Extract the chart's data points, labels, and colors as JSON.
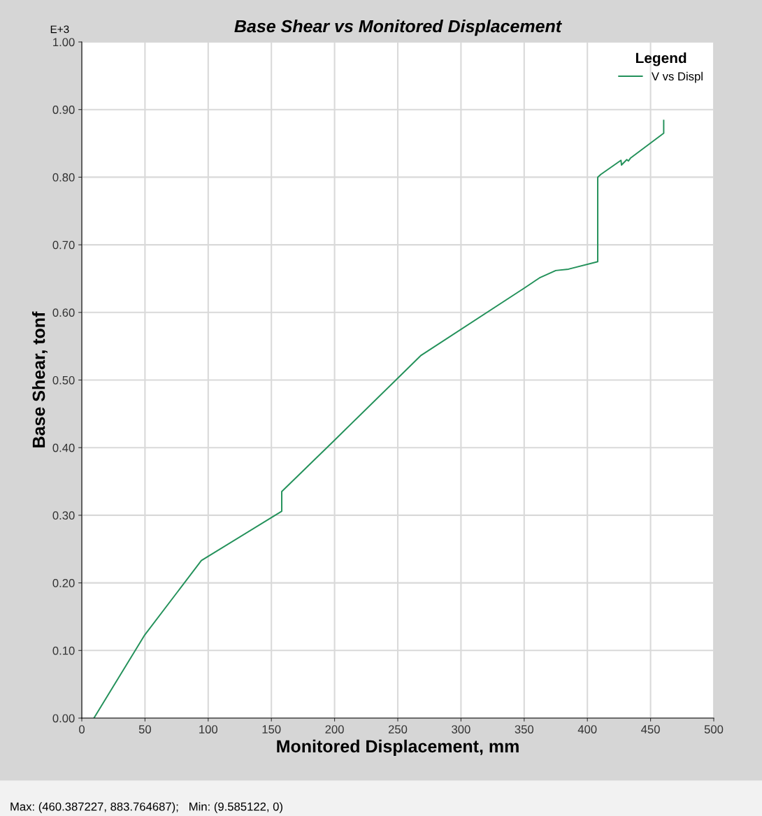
{
  "chart_data": {
    "type": "line",
    "title": "Base Shear vs Monitored Displacement",
    "xlabel": "Monitored Displacement, mm",
    "ylabel": "Base Shear, tonf",
    "legend_title": "Legend",
    "annotations": [
      "E+3",
      "Max: (460.387227, 883.764687);   Min: (9.585122, 0)"
    ],
    "series": [
      {
        "name": "V vs Displ",
        "color": "#23915a",
        "x": [
          9.6,
          49.8,
          94.6,
          158.2,
          158.2,
          200,
          268.1,
          350.1,
          362.1,
          375,
          385.1,
          408.2,
          408.2,
          410.6,
          426.6,
          427.0,
          431.2,
          432.5,
          434,
          460.4,
          460.4
        ],
        "values": [
          0,
          0.123,
          0.233,
          0.306,
          0.335,
          0.411,
          0.536,
          0.636,
          0.651,
          0.662,
          0.664,
          0.675,
          0.8,
          0.804,
          0.825,
          0.818,
          0.826,
          0.824,
          0.828,
          0.865,
          0.884
        ]
      }
    ],
    "xlim": [
      0,
      500
    ],
    "xticks": [
      0,
      50,
      100,
      150,
      200,
      250,
      300,
      350,
      400,
      450,
      500
    ],
    "ylim": [
      0,
      1
    ],
    "yticks": [
      {
        "value": 0,
        "label": "0.00"
      },
      {
        "value": 0.1,
        "label": "0.10"
      },
      {
        "value": 0.2,
        "label": "0.20"
      },
      {
        "value": 0.3,
        "label": "0.30"
      },
      {
        "value": 0.4,
        "label": "0.40"
      },
      {
        "value": 0.5,
        "label": "0.50"
      },
      {
        "value": 0.6,
        "label": "0.60"
      },
      {
        "value": 0.7,
        "label": "0.70"
      },
      {
        "value": 0.8,
        "label": "0.80"
      },
      {
        "value": 0.9,
        "label": "0.90"
      },
      {
        "value": 1,
        "label": "1.00"
      }
    ],
    "grid": true,
    "legend": "top right",
    "marker": "none",
    "line_style": "solid"
  }
}
